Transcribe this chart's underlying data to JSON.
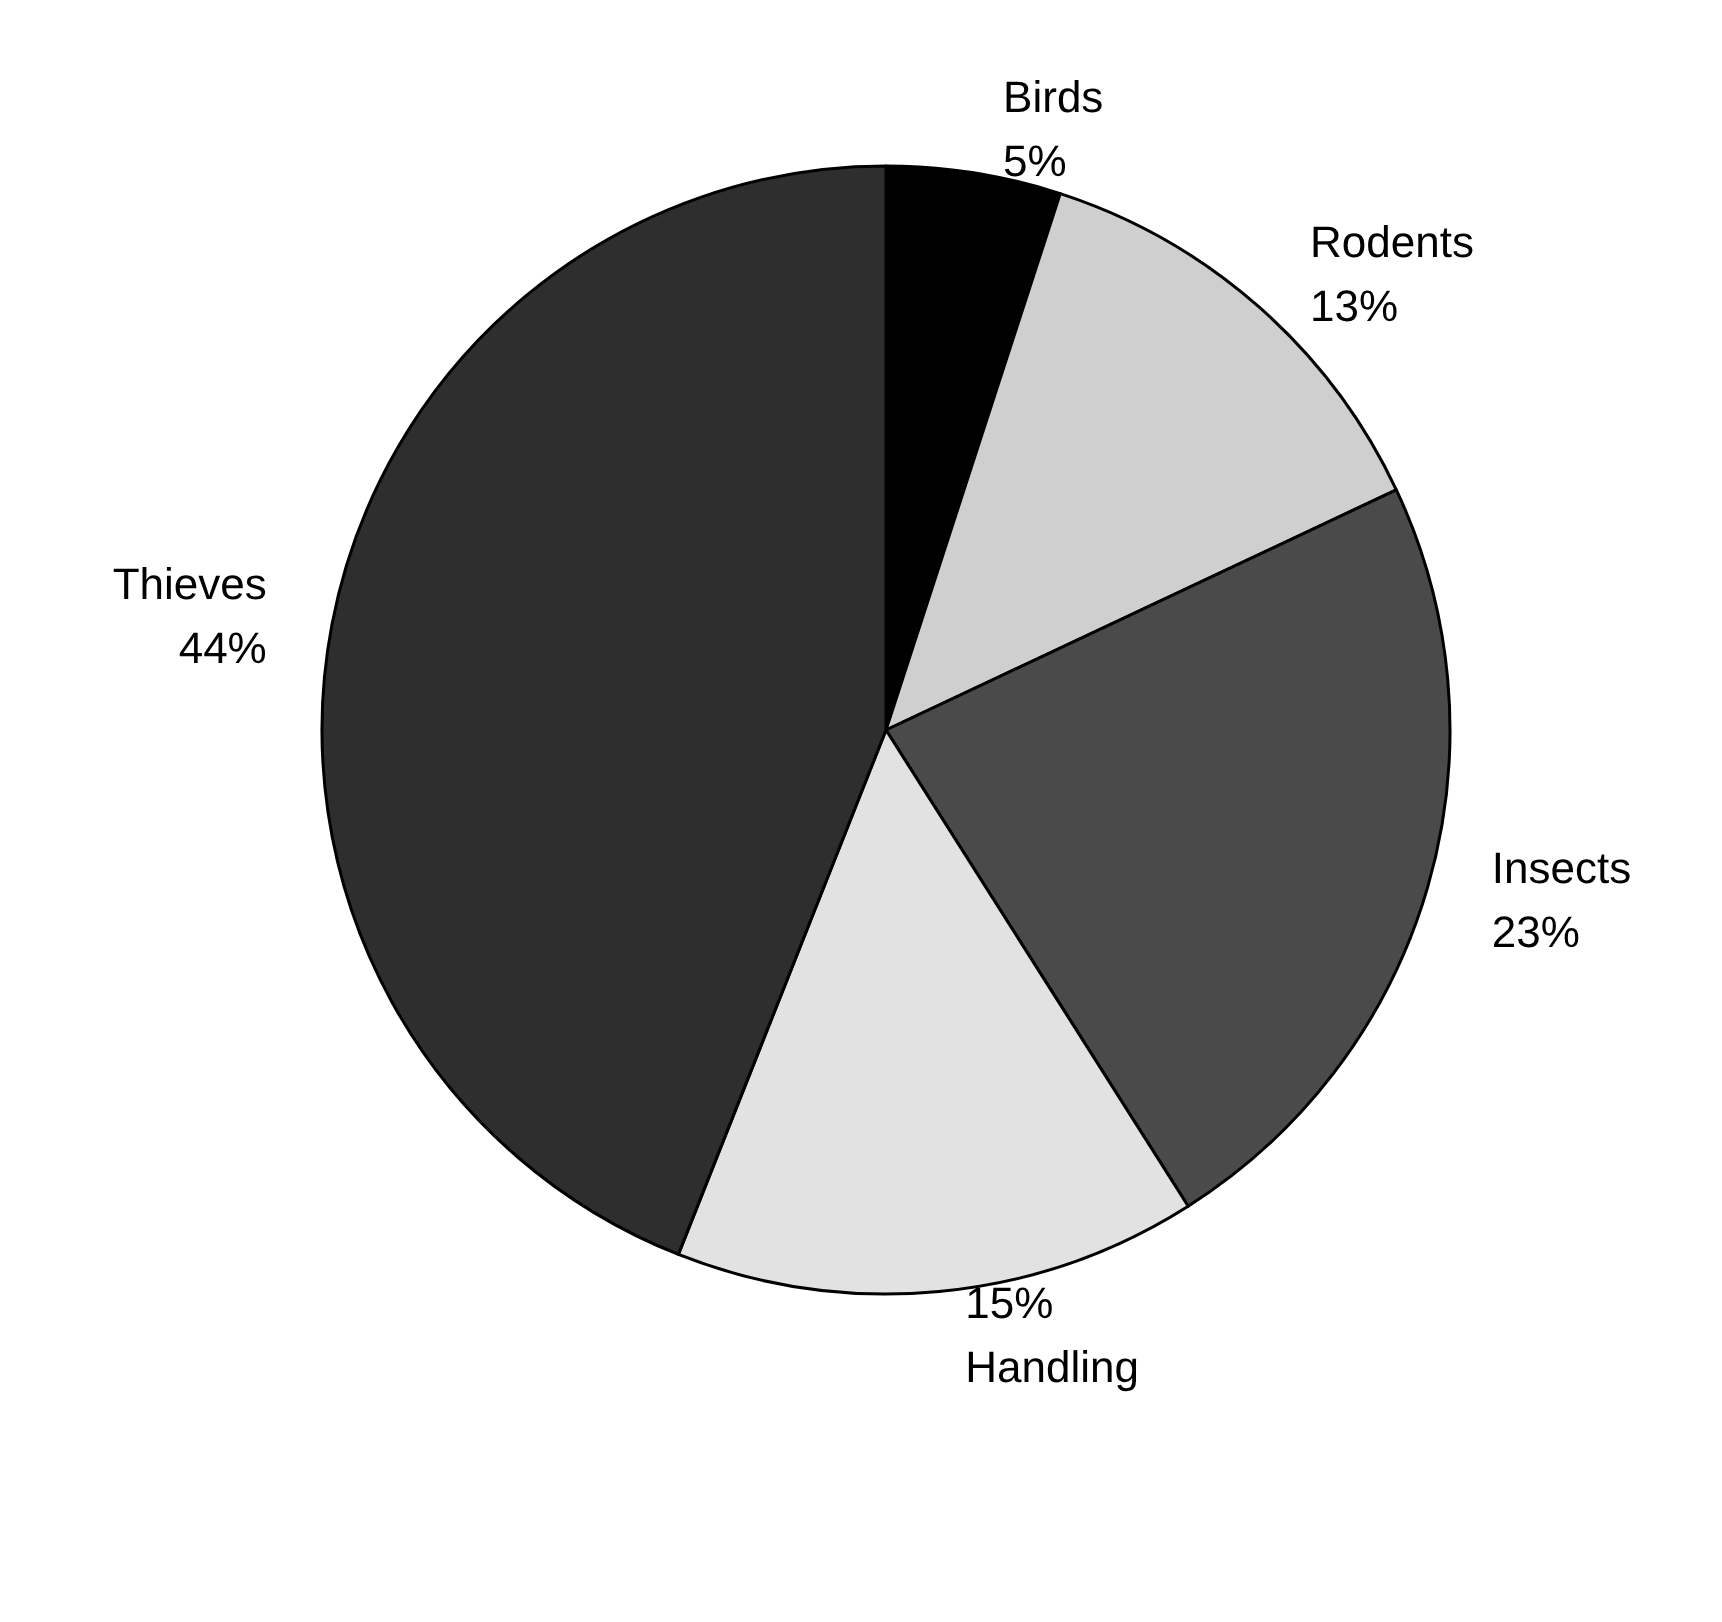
{
  "chart_data": {
    "type": "pie",
    "categories": [
      "Birds",
      "Rodents",
      "Insects",
      "Handling",
      "Thieves"
    ],
    "values": [
      5,
      13,
      23,
      15,
      44
    ],
    "value_labels": [
      "5%",
      "13%",
      "23%",
      "15%",
      "44%"
    ],
    "colors": [
      "#000000",
      "#cfcfcf",
      "#4a4a4a",
      "#e2e2e2",
      "#2e2e2e"
    ]
  }
}
